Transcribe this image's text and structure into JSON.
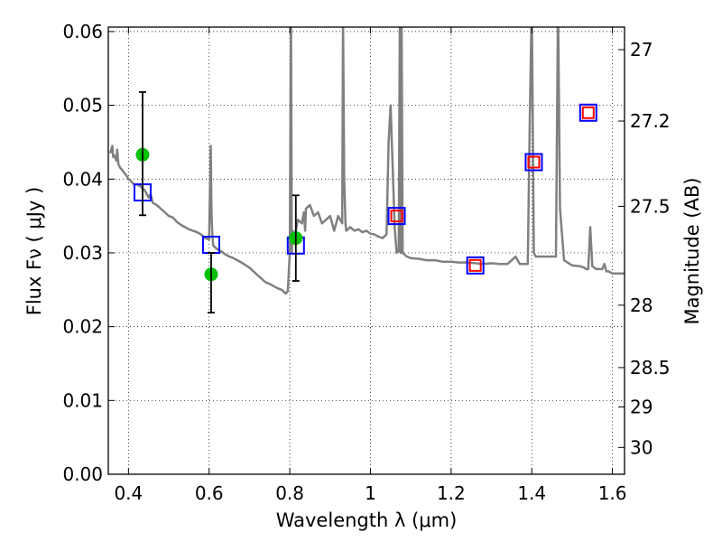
{
  "chart_data": {
    "type": "scatter",
    "xlabel": "Wavelength  λ (μm)",
    "ylabel": "Flux  Fν  ( μJy )",
    "y2label": "Magnitude (AB)",
    "xlim": [
      0.35,
      1.63
    ],
    "ylim": [
      0.0,
      0.0606
    ],
    "grid": true,
    "legend": "none",
    "x_ticks": [
      0.4,
      0.6,
      0.8,
      1.0,
      1.2,
      1.4,
      1.6
    ],
    "x_tick_labels": [
      "0.4",
      "0.6",
      "0.8",
      "1",
      "1.2",
      "1.4",
      "1.6"
    ],
    "y_ticks": [
      0.0,
      0.01,
      0.02,
      0.03,
      0.04,
      0.05,
      0.06
    ],
    "y_tick_labels": [
      "0.00",
      "0.01",
      "0.02",
      "0.03",
      "0.04",
      "0.05",
      "0.06"
    ],
    "y2_ticks": [
      27,
      27.2,
      27.5,
      28,
      28.5,
      29,
      30
    ],
    "y2_tick_labels": [
      "27",
      "27.2",
      "27.5",
      "28",
      "28.5",
      "29",
      "30"
    ],
    "series": [
      {
        "style": "line",
        "color": "#808080",
        "x": [
          0.355,
          0.36,
          0.362,
          0.365,
          0.37,
          0.372,
          0.375,
          0.38,
          0.385,
          0.39,
          0.395,
          0.4,
          0.405,
          0.41,
          0.415,
          0.42,
          0.43,
          0.44,
          0.45,
          0.455,
          0.46,
          0.47,
          0.48,
          0.49,
          0.5,
          0.51,
          0.52,
          0.53,
          0.54,
          0.55,
          0.56,
          0.57,
          0.58,
          0.59,
          0.6,
          0.602,
          0.604,
          0.606,
          0.608,
          0.61,
          0.62,
          0.63,
          0.64,
          0.65,
          0.66,
          0.67,
          0.68,
          0.7,
          0.72,
          0.74,
          0.75,
          0.76,
          0.77,
          0.78,
          0.79,
          0.795,
          0.8,
          0.803,
          0.805,
          0.807,
          0.81,
          0.815,
          0.82,
          0.83,
          0.835,
          0.838,
          0.84,
          0.85,
          0.86,
          0.87,
          0.88,
          0.89,
          0.9,
          0.91,
          0.92,
          0.93,
          0.932,
          0.935,
          0.938,
          0.94,
          0.95,
          0.96,
          0.97,
          0.98,
          0.99,
          1.0,
          1.01,
          1.02,
          1.03,
          1.04,
          1.045,
          1.05,
          1.055,
          1.06,
          1.065,
          1.07,
          1.073,
          1.075,
          1.077,
          1.08,
          1.09,
          1.1,
          1.12,
          1.14,
          1.16,
          1.18,
          1.2,
          1.22,
          1.24,
          1.26,
          1.28,
          1.3,
          1.32,
          1.34,
          1.35,
          1.36,
          1.365,
          1.37,
          1.38,
          1.39,
          1.395,
          1.4,
          1.405,
          1.41,
          1.42,
          1.43,
          1.44,
          1.45,
          1.455,
          1.46,
          1.465,
          1.47,
          1.48,
          1.5,
          1.52,
          1.53,
          1.535,
          1.54,
          1.545,
          1.55,
          1.56,
          1.57,
          1.575,
          1.58,
          1.585,
          1.59,
          1.6,
          1.63
        ],
        "y": [
          0.0435,
          0.0445,
          0.043,
          0.0432,
          0.0425,
          0.044,
          0.042,
          0.0415,
          0.0412,
          0.0408,
          0.0405,
          0.04,
          0.0398,
          0.0395,
          0.0392,
          0.0393,
          0.039,
          0.0385,
          0.0375,
          0.038,
          0.0368,
          0.0365,
          0.036,
          0.0355,
          0.035,
          0.0348,
          0.0342,
          0.0338,
          0.0335,
          0.0332,
          0.033,
          0.0328,
          0.0325,
          0.032,
          0.0318,
          0.038,
          0.0445,
          0.035,
          0.0325,
          0.031,
          0.0305,
          0.0302,
          0.0298,
          0.0295,
          0.0293,
          0.029,
          0.0287,
          0.028,
          0.027,
          0.026,
          0.0258,
          0.0255,
          0.0252,
          0.025,
          0.0245,
          0.0248,
          0.03,
          0.064,
          0.03,
          0.033,
          0.032,
          0.033,
          0.0345,
          0.034,
          0.0355,
          0.033,
          0.036,
          0.0365,
          0.035,
          0.0355,
          0.034,
          0.0345,
          0.035,
          0.033,
          0.035,
          0.034,
          0.062,
          0.04,
          0.034,
          0.033,
          0.0335,
          0.033,
          0.0332,
          0.0328,
          0.033,
          0.0326,
          0.0325,
          0.0322,
          0.032,
          0.0325,
          0.045,
          0.05,
          0.042,
          0.0335,
          0.03,
          0.0302,
          0.064,
          0.03,
          0.064,
          0.03,
          0.0295,
          0.0293,
          0.0292,
          0.029,
          0.029,
          0.0288,
          0.0288,
          0.0287,
          0.0287,
          0.0286,
          0.0285,
          0.0286,
          0.0285,
          0.0285,
          0.029,
          0.0295,
          0.029,
          0.0285,
          0.0285,
          0.0285,
          0.048,
          0.064,
          0.03,
          0.0295,
          0.0295,
          0.0295,
          0.0295,
          0.0295,
          0.0295,
          0.0295,
          0.064,
          0.036,
          0.029,
          0.0283,
          0.0282,
          0.028,
          0.0278,
          0.0278,
          0.0335,
          0.0282,
          0.0278,
          0.0278,
          0.0278,
          0.0285,
          0.0275,
          0.0275,
          0.0272,
          0.0272
        ]
      },
      {
        "style": "open-square",
        "color": "#0000ff",
        "x": [
          0.435,
          0.605,
          0.815,
          1.065,
          1.26,
          1.405,
          1.54
        ],
        "y": [
          0.0382,
          0.0311,
          0.031,
          0.035,
          0.0283,
          0.0423,
          0.049
        ]
      },
      {
        "style": "open-square",
        "color": "#ff0000",
        "x": [
          1.065,
          1.26,
          1.405,
          1.54
        ],
        "y": [
          0.035,
          0.0283,
          0.0423,
          0.049
        ]
      },
      {
        "style": "filled-circle",
        "color": "#00c000",
        "x": [
          0.435,
          0.605,
          0.815
        ],
        "y": [
          0.0433,
          0.0271,
          0.032
        ]
      },
      {
        "style": "errorbar",
        "color": "#000000",
        "x": [
          0.435,
          0.605,
          0.815
        ],
        "y_low": [
          0.0351,
          0.0219,
          0.0262
        ],
        "y_high": [
          0.0518,
          0.03,
          0.0378
        ]
      }
    ]
  }
}
